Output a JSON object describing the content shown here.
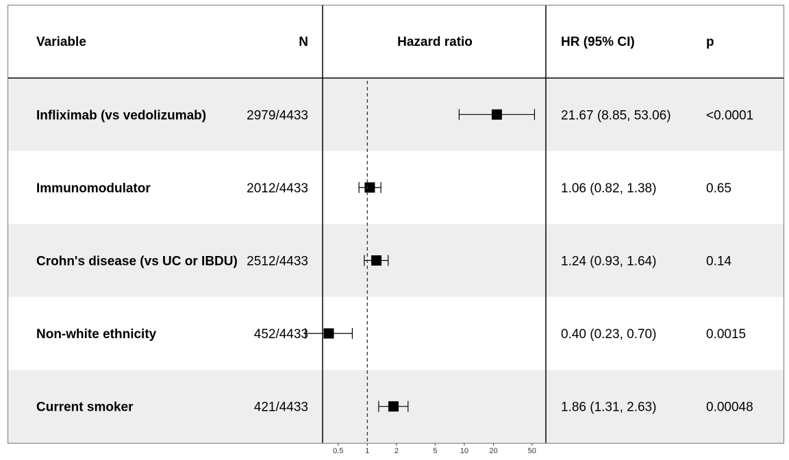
{
  "headers": {
    "variable": "Variable",
    "n": "N",
    "plot": "Hazard ratio",
    "hr": "HR (95% CI)",
    "p": "p"
  },
  "chart_data": {
    "type": "forest",
    "log_scale": true,
    "xlim": [
      0.4,
      60
    ],
    "reference_line": 1,
    "x_ticks": [
      0.5,
      1,
      2,
      5,
      10,
      20,
      50
    ],
    "x_tick_labels": [
      "0.5",
      "1",
      "2",
      "5",
      "10",
      "20",
      "50"
    ],
    "rows": [
      {
        "variable": "Infliximab (vs vedolizumab)",
        "n": "2979/4433",
        "hr": 21.67,
        "lo": 8.85,
        "hi": 53.06,
        "hr_text": "21.67 (8.85, 53.06)",
        "p": "<0.0001"
      },
      {
        "variable": "Immunomodulator",
        "n": "2012/4433",
        "hr": 1.06,
        "lo": 0.82,
        "hi": 1.38,
        "hr_text": "1.06 (0.82, 1.38)",
        "p": "0.65"
      },
      {
        "variable": "Crohn's disease (vs UC or IBDU)",
        "n": "2512/4433",
        "hr": 1.24,
        "lo": 0.93,
        "hi": 1.64,
        "hr_text": "1.24 (0.93, 1.64)",
        "p": "0.14"
      },
      {
        "variable": "Non-white ethnicity",
        "n": "452/4433",
        "hr": 0.4,
        "lo": 0.23,
        "hi": 0.7,
        "hr_text": "0.40 (0.23, 0.70)",
        "p": "0.0015"
      },
      {
        "variable": "Current smoker",
        "n": "421/4433",
        "hr": 1.86,
        "lo": 1.31,
        "hi": 2.63,
        "hr_text": "1.86 (1.31, 2.63)",
        "p": "0.00048"
      }
    ],
    "colors": {
      "stripe": "#eeeeee",
      "background": "#ffffff",
      "line": "#000000",
      "marker": "#000000"
    }
  }
}
